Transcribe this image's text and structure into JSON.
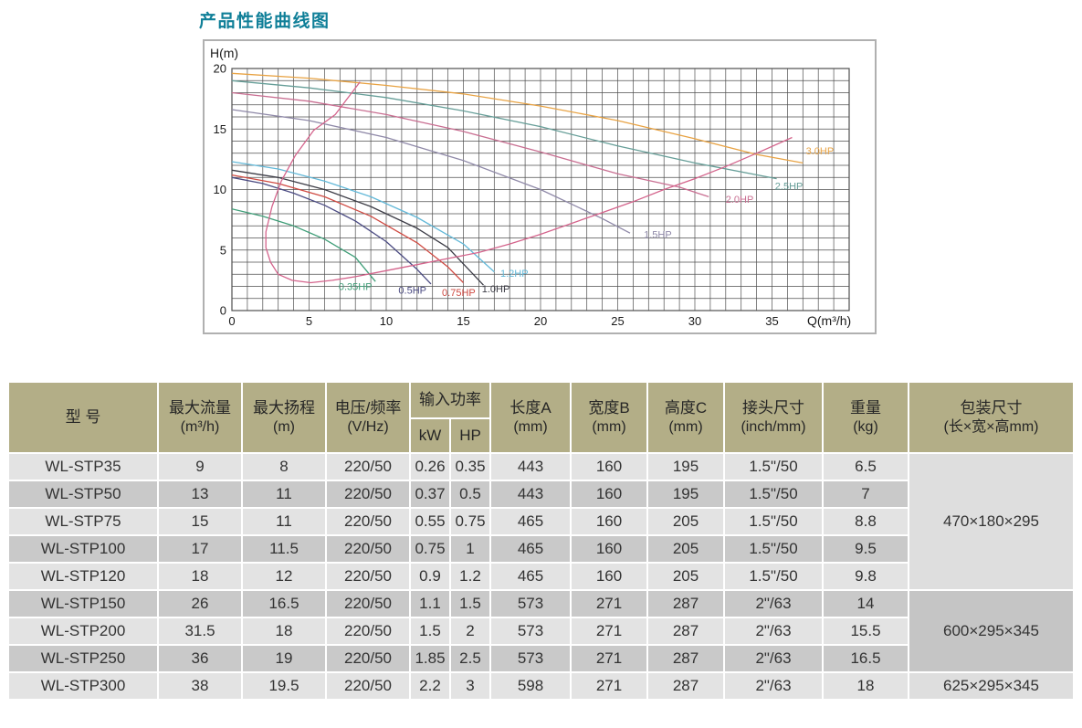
{
  "page": {
    "title": "产品性能曲线图"
  },
  "colors": {
    "title_teal": "#0f7f98",
    "header_khaki": "#b3ae87",
    "row_light": "#e3e3e3",
    "row_dark": "#c9c9c9",
    "package_light": "#dedede",
    "package_dark": "#c5c5c5",
    "grid": "#4f4f4f",
    "chart_border": "#b0b0b0",
    "tick_text": "#1a1a1a"
  },
  "chart_data": {
    "type": "line",
    "title": "产品性能曲线图",
    "xlabel": "Q(m³/h)",
    "ylabel": "H(m)",
    "xlim": [
      0,
      40
    ],
    "ylim": [
      0,
      20
    ],
    "x_ticks": [
      0,
      5,
      10,
      15,
      20,
      25,
      30,
      35
    ],
    "y_ticks": [
      0,
      5,
      10,
      15,
      20
    ],
    "grid": "minor grid every 1 unit on both axes",
    "legend_position": "inline labels at curve ends",
    "series": [
      {
        "name": "0.35HP",
        "color": "#3f9e78",
        "label_at": [
          8.0,
          2.0
        ],
        "points": [
          [
            0,
            8.4
          ],
          [
            2,
            7.8
          ],
          [
            4,
            7.0
          ],
          [
            6,
            5.9
          ],
          [
            8,
            4.4
          ],
          [
            9.3,
            2.4
          ]
        ]
      },
      {
        "name": "0.5HP",
        "color": "#4b4b82",
        "label_at": [
          11.7,
          1.7
        ],
        "points": [
          [
            0,
            11.0
          ],
          [
            2,
            10.5
          ],
          [
            4,
            9.7
          ],
          [
            6,
            8.7
          ],
          [
            8,
            7.4
          ],
          [
            10,
            5.7
          ],
          [
            12,
            3.4
          ],
          [
            12.9,
            2.2
          ]
        ]
      },
      {
        "name": "0.75HP",
        "color": "#cf4a42",
        "label_at": [
          14.7,
          1.5
        ],
        "points": [
          [
            0,
            11.2
          ],
          [
            3,
            10.5
          ],
          [
            6,
            9.4
          ],
          [
            9,
            7.8
          ],
          [
            12,
            5.6
          ],
          [
            14,
            3.6
          ],
          [
            15,
            2.3
          ]
        ]
      },
      {
        "name": "1.0HP",
        "color": "#3c3c46",
        "label_at": [
          17.1,
          1.8
        ],
        "points": [
          [
            0,
            11.6
          ],
          [
            3,
            11.0
          ],
          [
            6,
            10.0
          ],
          [
            9,
            8.6
          ],
          [
            12,
            6.8
          ],
          [
            14,
            5.2
          ],
          [
            16.3,
            2.1
          ]
        ]
      },
      {
        "name": "1.2HP",
        "color": "#62b8d8",
        "label_at": [
          18.3,
          3.1
        ],
        "points": [
          [
            0,
            12.3
          ],
          [
            3,
            11.7
          ],
          [
            6,
            10.7
          ],
          [
            9,
            9.4
          ],
          [
            12,
            7.7
          ],
          [
            15,
            5.5
          ],
          [
            17,
            3.2
          ]
        ]
      },
      {
        "name": "1.5HP",
        "color": "#8f89a8",
        "label_at": [
          27.6,
          6.3
        ],
        "points": [
          [
            0,
            16.6
          ],
          [
            5,
            15.7
          ],
          [
            10,
            14.3
          ],
          [
            15,
            12.4
          ],
          [
            20,
            10.0
          ],
          [
            24,
            7.6
          ],
          [
            25.8,
            6.4
          ]
        ]
      },
      {
        "name": "2.0HP",
        "color": "#c96f92",
        "label_at": [
          32.9,
          9.2
        ],
        "points": [
          [
            0,
            18.0
          ],
          [
            5,
            17.3
          ],
          [
            10,
            16.2
          ],
          [
            15,
            14.8
          ],
          [
            20,
            13.1
          ],
          [
            25,
            11.3
          ],
          [
            29,
            10.2
          ],
          [
            30.9,
            9.4
          ]
        ]
      },
      {
        "name": "2.5HP",
        "color": "#669e98",
        "label_at": [
          36.1,
          10.3
        ],
        "points": [
          [
            0,
            19.0
          ],
          [
            5,
            18.4
          ],
          [
            10,
            17.6
          ],
          [
            15,
            16.5
          ],
          [
            20,
            15.2
          ],
          [
            25,
            13.6
          ],
          [
            30,
            12.2
          ],
          [
            35.3,
            10.9
          ]
        ]
      },
      {
        "name": "3.0HP",
        "color": "#e8a344",
        "label_at": [
          38.1,
          13.2
        ],
        "points": [
          [
            0,
            19.6
          ],
          [
            5,
            19.2
          ],
          [
            10,
            18.6
          ],
          [
            15,
            17.9
          ],
          [
            20,
            16.9
          ],
          [
            25,
            15.7
          ],
          [
            30,
            14.2
          ],
          [
            34,
            12.9
          ],
          [
            37,
            12.2
          ]
        ]
      },
      {
        "name": "operating-envelope",
        "color": "#d4648c",
        "label_at": null,
        "points": [
          [
            8.3,
            18.9
          ],
          [
            6.7,
            16.2
          ],
          [
            5.3,
            14.9
          ],
          [
            4.1,
            12.8
          ],
          [
            3.2,
            10.7
          ],
          [
            2.6,
            8.6
          ],
          [
            2.2,
            6.5
          ],
          [
            2.2,
            5.2
          ],
          [
            2.5,
            4.0
          ],
          [
            3.0,
            3.0
          ],
          [
            3.9,
            2.5
          ],
          [
            5.1,
            2.3
          ],
          [
            6.5,
            2.5
          ],
          [
            8,
            2.8
          ],
          [
            10,
            3.3
          ],
          [
            12,
            3.8
          ],
          [
            14,
            4.3
          ],
          [
            16,
            4.8
          ],
          [
            18,
            5.5
          ],
          [
            20,
            6.3
          ],
          [
            22,
            7.2
          ],
          [
            24,
            8.1
          ],
          [
            26,
            9.0
          ],
          [
            28,
            10.0
          ],
          [
            30,
            10.9
          ],
          [
            32,
            11.9
          ],
          [
            34,
            13.0
          ],
          [
            36.3,
            14.3
          ]
        ]
      }
    ]
  },
  "table": {
    "header": {
      "model": {
        "label": "型 号"
      },
      "max_flow": {
        "label": "最大流量",
        "unit": "(m³/h)"
      },
      "max_head": {
        "label": "最大扬程",
        "unit": "(m)"
      },
      "voltage_freq": {
        "label": "电压/频率",
        "unit": "(V/Hz)"
      },
      "input_power": {
        "label": "输入功率",
        "sub_kw": "kW",
        "sub_hp": "HP"
      },
      "length_a": {
        "label": "长度A",
        "unit": "(mm)"
      },
      "width_b": {
        "label": "宽度B",
        "unit": "(mm)"
      },
      "height_c": {
        "label": "高度C",
        "unit": "(mm)"
      },
      "joint_size": {
        "label": "接头尺寸",
        "unit": "(inch/mm)"
      },
      "weight": {
        "label": "重量",
        "unit": "(kg)"
      },
      "package_size": {
        "label": "包装尺寸",
        "unit": "(长×宽×高mm)"
      }
    },
    "rows": [
      [
        "WL-STP35",
        "9",
        "8",
        "220/50",
        "0.26",
        "0.35",
        "443",
        "160",
        "195",
        "1.5\"/50",
        "6.5"
      ],
      [
        "WL-STP50",
        "13",
        "11",
        "220/50",
        "0.37",
        "0.5",
        "443",
        "160",
        "195",
        "1.5\"/50",
        "7"
      ],
      [
        "WL-STP75",
        "15",
        "11",
        "220/50",
        "0.55",
        "0.75",
        "465",
        "160",
        "205",
        "1.5\"/50",
        "8.8"
      ],
      [
        "WL-STP100",
        "17",
        "11.5",
        "220/50",
        "0.75",
        "1",
        "465",
        "160",
        "205",
        "1.5\"/50",
        "9.5"
      ],
      [
        "WL-STP120",
        "18",
        "12",
        "220/50",
        "0.9",
        "1.2",
        "465",
        "160",
        "205",
        "1.5\"/50",
        "9.8"
      ],
      [
        "WL-STP150",
        "26",
        "16.5",
        "220/50",
        "1.1",
        "1.5",
        "573",
        "271",
        "287",
        "2\"/63",
        "14"
      ],
      [
        "WL-STP200",
        "31.5",
        "18",
        "220/50",
        "1.5",
        "2",
        "573",
        "271",
        "287",
        "2\"/63",
        "15.5"
      ],
      [
        "WL-STP250",
        "36",
        "19",
        "220/50",
        "1.85",
        "2.5",
        "573",
        "271",
        "287",
        "2\"/63",
        "16.5"
      ],
      [
        "WL-STP300",
        "38",
        "19.5",
        "220/50",
        "2.2",
        "3",
        "598",
        "271",
        "287",
        "2\"/63",
        "18"
      ]
    ],
    "package_groups": [
      {
        "start_row": 0,
        "span": 5,
        "value": "470×180×295",
        "shade": "light"
      },
      {
        "start_row": 5,
        "span": 3,
        "value": "600×295×345",
        "shade": "dark"
      },
      {
        "start_row": 8,
        "span": 1,
        "value": "625×295×345",
        "shade": "light"
      }
    ]
  }
}
